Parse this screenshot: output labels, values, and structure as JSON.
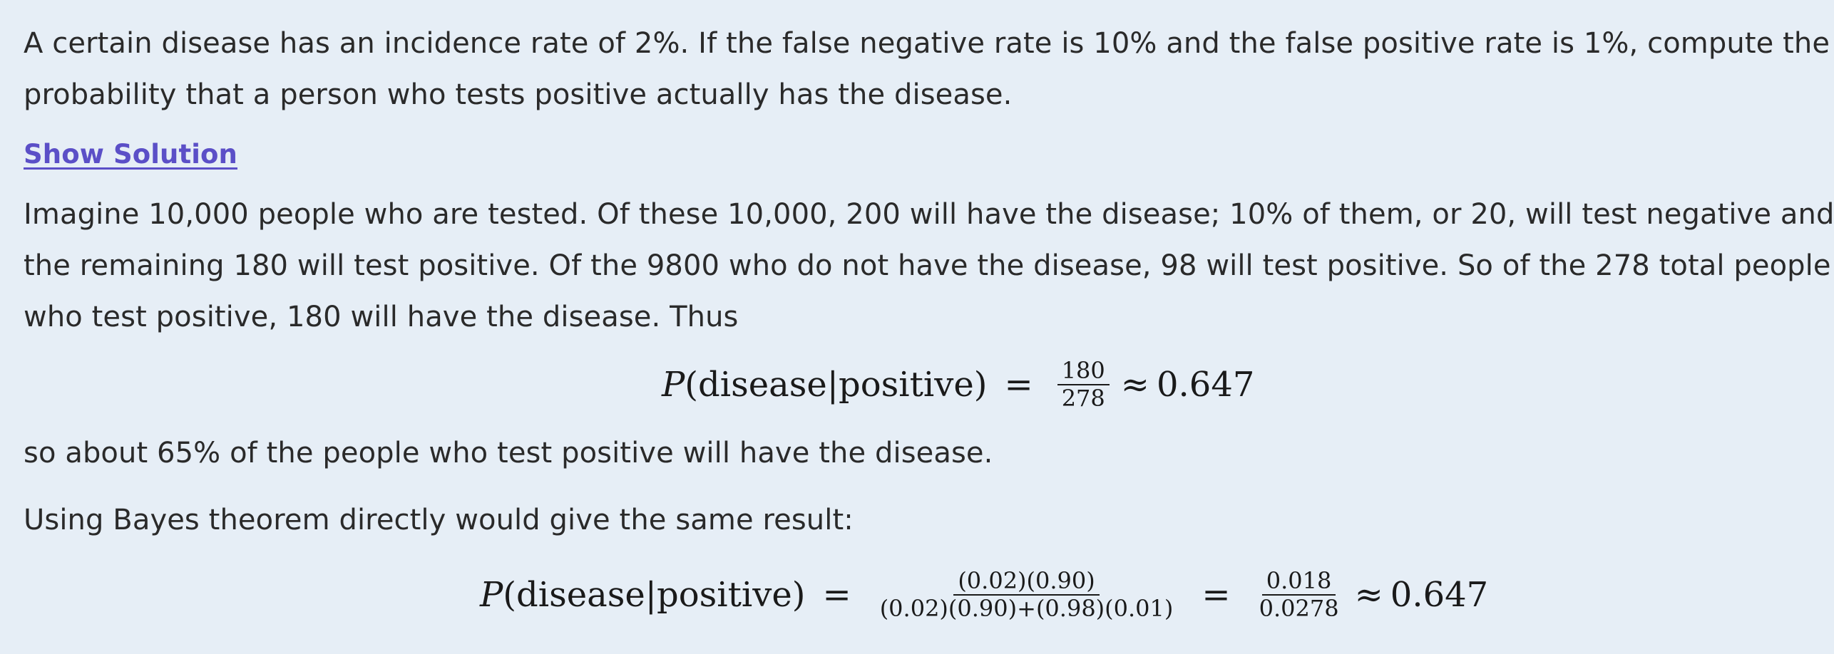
{
  "problem": {
    "line1": "A certain disease has an incidence rate of 2%. If the false negative rate is 10% and the false positive rate is 1%, compute the",
    "line2": "probability that a person who tests positive actually has the disease."
  },
  "show_solution_label": "Show Solution",
  "solution": {
    "line1": "Imagine 10,000 people who are tested. Of these 10,000, 200 will have the disease; 10% of them, or 20, will test negative and",
    "line2": "the remaining 180 will test positive. Of the 9800 who do not have the disease, 98 will test positive. So of the 278 total people",
    "line3": "who test positive, 180 will have the disease. Thus",
    "after_eq1": "so about 65% of the people who test positive will have the disease.",
    "bayes_intro": "Using Bayes theorem directly would give the same result:"
  },
  "eq1": {
    "lhs_p": "P",
    "lhs_args": "(disease|positive)",
    "eq": "=",
    "num": "180",
    "den": "278",
    "approx": "≈",
    "result": "0.647"
  },
  "eq2": {
    "lhs_p": "P",
    "lhs_args": "(disease|positive)",
    "eq": "=",
    "num1": "(0.02)(0.90)",
    "den1": "(0.02)(0.90)+(0.98)(0.01)",
    "eq2": "=",
    "num2": "0.018",
    "den2": "0.0278",
    "approx": "≈",
    "result": "0.647"
  }
}
